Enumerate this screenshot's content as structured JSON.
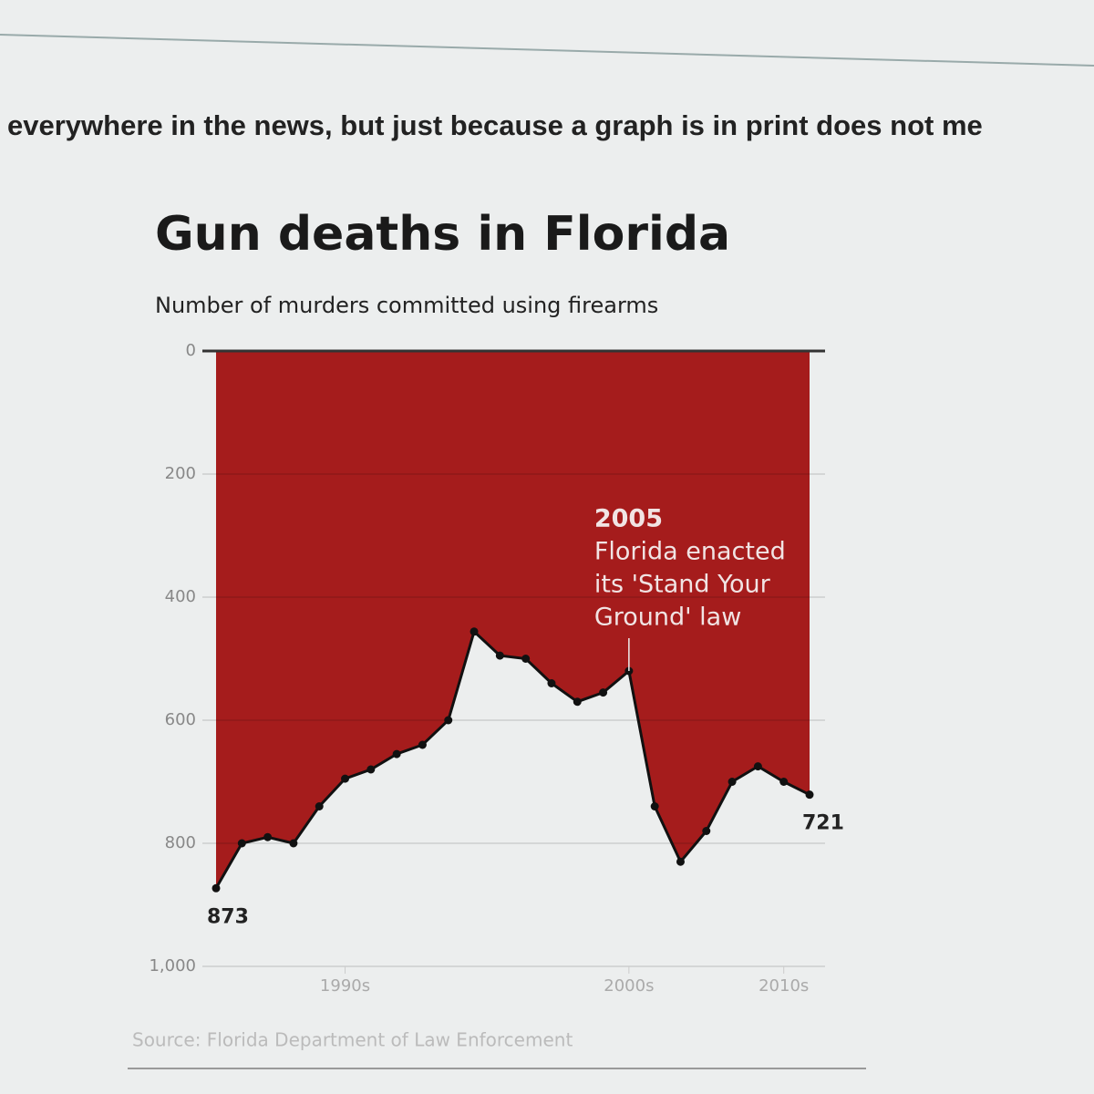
{
  "header": {
    "text": "everywhere in the news, but just because a graph is in print does not me"
  },
  "chart_data": {
    "type": "area-line",
    "title": "Gun deaths in Florida",
    "subtitle": "Number of murders committed using firearms",
    "x": [
      1989,
      1990,
      1991,
      1992,
      1993,
      1994,
      1995,
      1996,
      1997,
      1998,
      1999,
      2000,
      2001,
      2002,
      2003,
      2004,
      2005,
      2006,
      2007,
      2008,
      2009,
      2010,
      2011,
      2012
    ],
    "values": [
      873,
      800,
      790,
      800,
      740,
      695,
      680,
      655,
      640,
      600,
      456,
      495,
      500,
      540,
      570,
      555,
      520,
      740,
      830,
      780,
      700,
      675,
      700,
      721
    ],
    "color": "#a51c1c",
    "line_color": "#111111",
    "ylim": [
      0,
      1000
    ],
    "y_inverted": true,
    "yticks": [
      0,
      200,
      400,
      600,
      800,
      {
        "value": 1000,
        "label": "1,000"
      }
    ],
    "xlim": [
      1988.5,
      2012.5
    ],
    "xticks": [
      {
        "value": 1994,
        "label": "1990s"
      },
      {
        "value": 2005,
        "label": "2000s"
      },
      {
        "value": 2011,
        "label": "2010s"
      }
    ],
    "grid": true,
    "annotation": {
      "x": 2005,
      "lines": [
        "2005",
        "Florida enacted",
        "its 'Stand Your",
        "Ground' law"
      ]
    },
    "source": "Source: Florida Department of Law Enforcement"
  }
}
